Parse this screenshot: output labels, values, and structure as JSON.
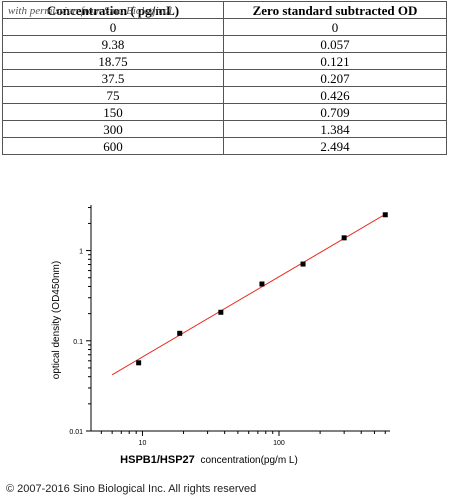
{
  "watermark": "with permission from Sino Biological",
  "table": {
    "headers": [
      "Concentration ( pg/mL)",
      "Zero standard subtracted OD"
    ],
    "rows": [
      [
        "0",
        "0"
      ],
      [
        "9.38",
        "0.057"
      ],
      [
        "18.75",
        "0.121"
      ],
      [
        "37.5",
        "0.207"
      ],
      [
        "75",
        "0.426"
      ],
      [
        "150",
        "0.709"
      ],
      [
        "300",
        "1.384"
      ],
      [
        "600",
        "2.494"
      ]
    ]
  },
  "chart_data": {
    "type": "scatter",
    "x_scale": "log",
    "y_scale": "log",
    "xlim": [
      4.2,
      650
    ],
    "ylim": [
      0.01,
      3.2
    ],
    "x_ticks": [
      10,
      100
    ],
    "x_tick_labels": [
      "10",
      "100"
    ],
    "y_ticks": [
      0.01,
      0.1,
      1
    ],
    "y_tick_labels": [
      "0.01",
      "0.1",
      "1"
    ],
    "ylabel": "optical density (OD450nm)",
    "xlabel_bold": "HSPB1/HSP27",
    "xlabel": "concentration(pg/m L)",
    "grid": false,
    "points": {
      "x": [
        9.38,
        18.75,
        37.5,
        75,
        150,
        300,
        600
      ],
      "y": [
        0.057,
        0.121,
        0.207,
        0.426,
        0.709,
        1.384,
        2.494
      ]
    },
    "fit_line": {
      "x": [
        6.0,
        620
      ],
      "y": [
        0.042,
        2.6
      ]
    },
    "colors": {
      "points": "#000000",
      "fit_line": "#e8281e",
      "axes": "#000000"
    }
  },
  "footer": "© 2007-2016 Sino Biological Inc. All rights reserved"
}
